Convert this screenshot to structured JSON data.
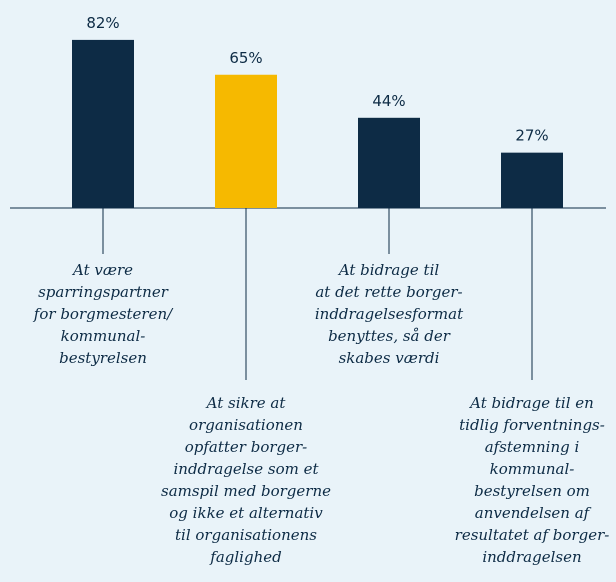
{
  "chart_data": {
    "type": "bar",
    "categories": [
      "At være\nsparringspartner\nfor borgmesteren/\nkommunal-\nbestyrelsen",
      "At sikre at\norganisationen\nopfatter borger-\ninddragelse som et\nsamspil med borgerne\nog ikke et alternativ\ntil organisationens\nfaglighed",
      "At bidrage til\nat det rette borger-\ninddragelsesformat\nbenyttes, så der\nskabes værdi",
      "At bidrage til en\ntidlig forventnings-\nafstemning i\nkommunal-\nbestyrelsen om\nanvendelsen af\nresultatet af borger-\ninddragelsen"
    ],
    "values": [
      82,
      65,
      44,
      27
    ],
    "value_labels": [
      "82%",
      "65%",
      "44%",
      "27%"
    ],
    "colors": [
      "#0d2b45",
      "#f6b900",
      "#0d2b45",
      "#0d2b45"
    ]
  }
}
